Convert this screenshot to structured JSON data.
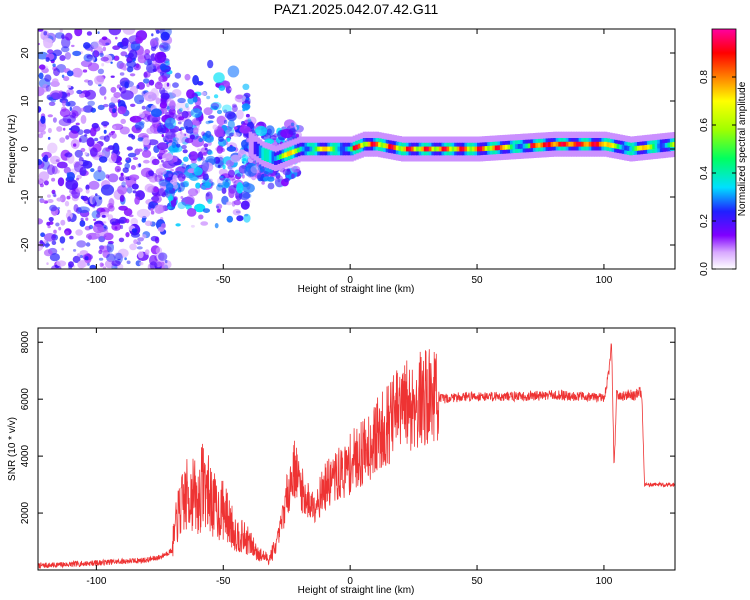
{
  "title": "PAZ1.2025.042.07.42.G11",
  "chart_data": [
    {
      "type": "heatmap",
      "xlabel": "Height of straight line (km)",
      "ylabel": "Frequency (Hz)",
      "xlim": [
        -123,
        128
      ],
      "ylim": [
        -25,
        25
      ],
      "xticks": [
        -100,
        -50,
        0,
        50,
        100
      ],
      "yticks": [
        -20,
        -10,
        0,
        10,
        20
      ],
      "colorbar": {
        "label": "Normalized spectral amplitude",
        "range": [
          0,
          1
        ],
        "ticks": [
          0.0,
          0.2,
          0.4,
          0.6,
          0.8
        ]
      },
      "ridge": [
        {
          "x": -40,
          "y": 1
        },
        {
          "x": -35,
          "y": -1
        },
        {
          "x": -30,
          "y": -2
        },
        {
          "x": -25,
          "y": -1
        },
        {
          "x": -20,
          "y": 0
        },
        {
          "x": -10,
          "y": 0
        },
        {
          "x": 0,
          "y": 0
        },
        {
          "x": 5,
          "y": 1
        },
        {
          "x": 10,
          "y": 1
        },
        {
          "x": 20,
          "y": 0
        },
        {
          "x": 50,
          "y": 0
        },
        {
          "x": 80,
          "y": 1
        },
        {
          "x": 100,
          "y": 1
        },
        {
          "x": 110,
          "y": 0
        },
        {
          "x": 128,
          "y": 1
        }
      ]
    },
    {
      "type": "line",
      "xlabel": "Height of straight line (km)",
      "ylabel": "SNR (10 * v/v)",
      "xlim": [
        -123,
        128
      ],
      "ylim": [
        0,
        8500
      ],
      "xticks": [
        -100,
        -50,
        0,
        50,
        100
      ],
      "yticks": [
        2000,
        4000,
        6000,
        8000
      ],
      "color": "#ee3333",
      "series": [
        {
          "x": [
            -123,
            -110,
            -100,
            -90,
            -80,
            -75,
            -70,
            -68,
            -65,
            -62,
            -60,
            -58,
            -55,
            -52,
            -50,
            -48,
            -45,
            -42,
            -40,
            -38,
            -35,
            -32,
            -30,
            -28,
            -25,
            -22,
            -20,
            -18,
            -15,
            -12,
            -10,
            -8,
            -5,
            -2,
            0,
            2,
            5,
            8,
            10,
            12,
            15,
            18,
            20,
            25,
            30,
            35,
            40,
            45,
            50,
            60,
            70,
            80,
            90,
            95,
            100,
            102,
            103,
            104,
            105,
            106,
            108,
            110,
            112,
            114,
            115,
            116,
            118,
            120,
            125,
            128
          ],
          "y": [
            150,
            200,
            250,
            300,
            350,
            450,
            700,
            1500,
            2000,
            2200,
            1800,
            2500,
            2000,
            1600,
            1700,
            1400,
            1000,
            900,
            800,
            600,
            400,
            300,
            600,
            1200,
            2500,
            3500,
            3000,
            2500,
            2200,
            2500,
            2800,
            3000,
            3200,
            3400,
            3600,
            3800,
            4000,
            4300,
            4500,
            4700,
            5000,
            5300,
            5500,
            5700,
            5900,
            6000,
            6050,
            6100,
            6100,
            6100,
            6100,
            6150,
            6100,
            6100,
            6000,
            7000,
            8000,
            3500,
            6200,
            6100,
            6100,
            6200,
            6100,
            6300,
            6000,
            3000,
            3000,
            3000,
            3000,
            3000
          ]
        }
      ]
    }
  ]
}
